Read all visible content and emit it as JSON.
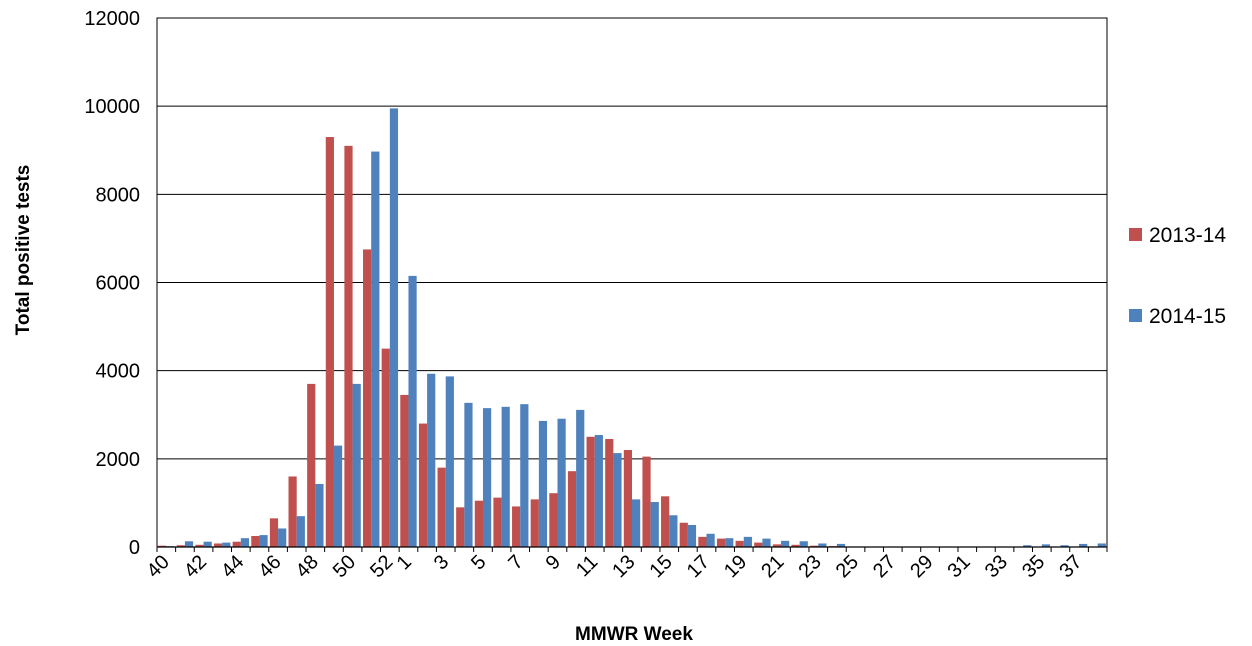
{
  "chart_data": {
    "type": "bar",
    "title": "",
    "xlabel": "MMWR Week",
    "ylabel": "Total positive tests",
    "ylim": [
      0,
      12000
    ],
    "yticks": [
      "0",
      "2000",
      "4000",
      "6000",
      "8000",
      "10000",
      "12000"
    ],
    "grid": "horizontal",
    "legend_position": "right",
    "categories": [
      "40",
      "41",
      "42",
      "43",
      "44",
      "45",
      "46",
      "47",
      "48",
      "49",
      "50",
      "51",
      "52",
      "1",
      "2",
      "3",
      "4",
      "5",
      "6",
      "7",
      "8",
      "9",
      "10",
      "11",
      "12",
      "13",
      "14",
      "15",
      "16",
      "17",
      "18",
      "19",
      "20",
      "21",
      "22",
      "23",
      "24",
      "25",
      "26",
      "27",
      "28",
      "29",
      "30",
      "31",
      "32",
      "33",
      "34",
      "35",
      "36",
      "37",
      "38"
    ],
    "x_tick_labels": [
      "40",
      "",
      "42",
      "",
      "44",
      "",
      "46",
      "",
      "48",
      "",
      "50",
      "",
      "52",
      "1",
      "",
      "3",
      "",
      "5",
      "",
      "7",
      "",
      "9",
      "",
      "11",
      "",
      "13",
      "",
      "15",
      "",
      "17",
      "",
      "19",
      "",
      "21",
      "",
      "23",
      "",
      "25",
      "",
      "27",
      "",
      "29",
      "",
      "31",
      "",
      "33",
      "",
      "35",
      "",
      "37",
      ""
    ],
    "series": [
      {
        "name": "2013-14",
        "color": "#C0504D",
        "values": [
          30,
          40,
          50,
          80,
          120,
          250,
          650,
          1600,
          3700,
          9300,
          9100,
          6750,
          4500,
          3450,
          2800,
          1800,
          900,
          1050,
          1120,
          920,
          1080,
          1220,
          1720,
          2500,
          2450,
          2200,
          2050,
          1150,
          550,
          230,
          190,
          140,
          100,
          60,
          50,
          30,
          20,
          10,
          5,
          5,
          5,
          5,
          5,
          5,
          5,
          5,
          5,
          5,
          5,
          5,
          5
        ]
      },
      {
        "name": "2014-15",
        "color": "#4F81BD",
        "values": [
          20,
          130,
          120,
          100,
          200,
          270,
          420,
          700,
          1430,
          2300,
          3700,
          8970,
          9950,
          6150,
          3930,
          3870,
          3270,
          3150,
          3180,
          3240,
          2860,
          2910,
          3110,
          2540,
          2130,
          1080,
          1020,
          720,
          500,
          300,
          200,
          230,
          190,
          140,
          130,
          80,
          70,
          10,
          10,
          10,
          10,
          10,
          10,
          10,
          10,
          10,
          40,
          60,
          40,
          70,
          80
        ]
      }
    ]
  }
}
